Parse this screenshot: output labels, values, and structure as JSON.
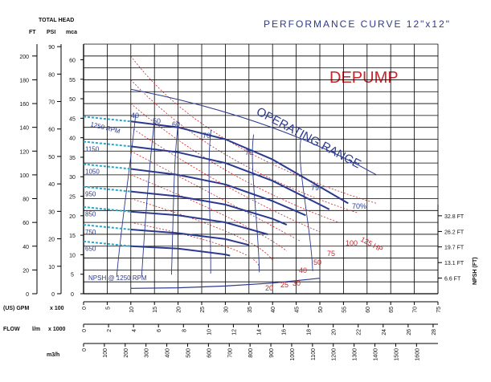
{
  "chart_data": {
    "type": "line",
    "title": "PERFORMANCE CURVE 12\"x12\"",
    "brand": "DEPUMP",
    "total_head_label": "TOTAL HEAD",
    "axis_units": {
      "ft": "FT",
      "psi": "PSI",
      "mca": "mca"
    },
    "flow_units": {
      "gpm": "(US) GPM",
      "gpm_scale": "x 100",
      "lm": "l/m",
      "lm_scale": "x 1000",
      "m3h": "m3/h"
    },
    "flow_label": "FLOW",
    "npsh_label": "NPSH (FT)",
    "npsh_curve_label": "NPSH @ 1250 RPM",
    "operating_range_label": "OPERATING RANGE",
    "xlim": [
      0,
      75
    ],
    "ylim_ft": [
      0,
      210
    ],
    "ft_ticks": [
      "0",
      "20",
      "40",
      "60",
      "80",
      "100",
      "120",
      "140",
      "160",
      "180",
      "200"
    ],
    "psi_ticks": [
      "0",
      "10",
      "20",
      "30",
      "40",
      "50",
      "60",
      "70",
      "80",
      "90"
    ],
    "mca_ticks": [
      "0",
      "5",
      "10",
      "15",
      "20",
      "25",
      "30",
      "35",
      "40",
      "45",
      "50",
      "55",
      "60"
    ],
    "gpm_ticks": [
      "0",
      "5",
      "10",
      "15",
      "20",
      "25",
      "30",
      "35",
      "40",
      "45",
      "50",
      "55",
      "60",
      "65",
      "70",
      "75"
    ],
    "lm_ticks": [
      "0",
      "2",
      "4",
      "6",
      "8",
      "10",
      "12",
      "14",
      "16",
      "18",
      "20",
      "22",
      "24",
      "26",
      "28"
    ],
    "m3h_ticks": [
      "0",
      "100",
      "200",
      "300",
      "400",
      "500",
      "600",
      "700",
      "800",
      "900",
      "1000",
      "1100",
      "1200",
      "1300",
      "1400",
      "1500",
      "1600"
    ],
    "npsh_ticks": [
      "32.8 FT",
      "26.2 FT",
      "19.7 FT",
      "13.1 FT",
      "6.6 FT"
    ],
    "speed_series": [
      {
        "name": "1250 RPM",
        "shutoff_ft": 145,
        "x": [
          10,
          20,
          30,
          40,
          50,
          56
        ],
        "y": [
          145,
          140,
          130,
          113,
          90,
          76
        ]
      },
      {
        "name": "1150",
        "shutoff_ft": 124,
        "x": [
          10,
          20,
          30,
          40,
          50,
          52
        ],
        "y": [
          124,
          119,
          110,
          95,
          75,
          71
        ]
      },
      {
        "name": "1050",
        "shutoff_ft": 105,
        "x": [
          10,
          20,
          30,
          40,
          47
        ],
        "y": [
          105,
          100,
          92,
          78,
          66
        ]
      },
      {
        "name": "950",
        "shutoff_ft": 86,
        "x": [
          10,
          20,
          30,
          40,
          43
        ],
        "y": [
          86,
          82,
          75,
          63,
          58
        ]
      },
      {
        "name": "850",
        "shutoff_ft": 69,
        "x": [
          10,
          20,
          30,
          39
        ],
        "y": [
          69,
          66,
          60,
          50
        ]
      },
      {
        "name": "750",
        "shutoff_ft": 54,
        "x": [
          10,
          20,
          30,
          35
        ],
        "y": [
          54,
          51,
          46,
          41
        ]
      },
      {
        "name": "650",
        "shutoff_ft": 40,
        "x": [
          10,
          20,
          30,
          31
        ],
        "y": [
          40,
          38,
          33,
          32
        ]
      }
    ],
    "efficiency_labels": [
      "40",
      "50",
      "60",
      "70",
      "79",
      "79",
      "70%"
    ],
    "power_labels": [
      "125 HP",
      "100",
      "75",
      "50",
      "40",
      "30",
      "25",
      "20"
    ],
    "operating_range_boundary": {
      "x": [
        10,
        40,
        62
      ],
      "y": [
        172,
        149,
        100
      ]
    },
    "npsh_curve": {
      "x": [
        10,
        20,
        30,
        40,
        50
      ],
      "y": [
        4.5,
        5,
        6.5,
        9,
        13
      ]
    }
  }
}
